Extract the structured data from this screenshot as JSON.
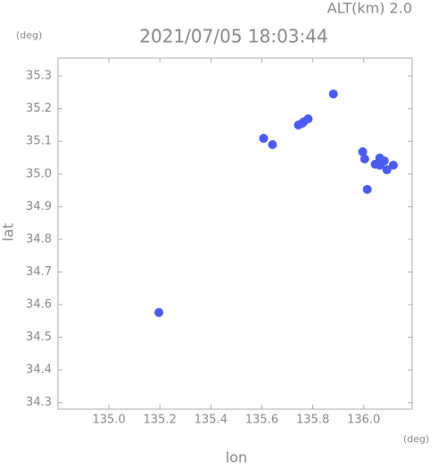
{
  "chart_data": {
    "type": "scatter",
    "title": "2021/07/05 18:03:44",
    "subtitle": "ALT(km) 2.0",
    "y_unit": "(deg)",
    "x_unit": "(deg)",
    "x_label": "lon",
    "y_label": "lat",
    "xlim": [
      134.8,
      136.19
    ],
    "ylim": [
      34.28,
      35.355
    ],
    "xticks": [
      {
        "value": 135.0,
        "label": "135.0"
      },
      135.2,
      135.4,
      135.6,
      135.8,
      {
        "value": 136.0,
        "label": "136.0"
      }
    ],
    "yticks": [
      35.3,
      35.2,
      35.1,
      {
        "value": 35.0,
        "label": "35.0"
      },
      34.9,
      34.8,
      34.7,
      34.6,
      34.5,
      34.4,
      34.3
    ],
    "series": [
      {
        "color": "#4a5cf0",
        "x": [
          135.881,
          135.758,
          135.782,
          135.744,
          135.765,
          135.607,
          135.642,
          135.996,
          136.004,
          136.063,
          136.091,
          136.116,
          136.063,
          136.081,
          136.045,
          136.014,
          135.196
        ],
        "values": [
          35.245,
          35.155,
          35.169,
          35.15,
          35.16,
          35.109,
          35.09,
          35.068,
          35.046,
          35.027,
          35.013,
          35.027,
          35.049,
          35.04,
          35.03,
          34.953,
          34.576
        ]
      }
    ]
  }
}
